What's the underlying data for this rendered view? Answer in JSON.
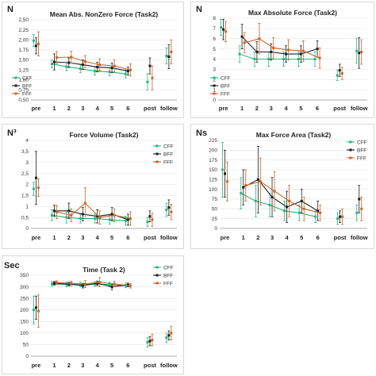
{
  "chart_data": [
    {
      "type": "line",
      "unit": "N",
      "title": "Mean Abs. NonZero Force (Task2)",
      "categories": [
        "pre",
        "1",
        "2",
        "3",
        "4",
        "5",
        "6",
        "post",
        "follow"
      ],
      "ylim": [
        0.5,
        2.5
      ],
      "yticks": [
        "0,50",
        "0,75",
        "1,00",
        "1,25",
        "1,50",
        "1,75",
        "2,00",
        "2,25",
        "2,50"
      ],
      "legend_position": "left",
      "series": [
        {
          "name": "CFF",
          "color": "#2db37c",
          "values": [
            1.98,
            1.4,
            1.33,
            1.28,
            1.22,
            1.2,
            1.15,
            0.95,
            1.6
          ],
          "err": [
            0.15,
            0.1,
            0.1,
            0.1,
            0.1,
            0.1,
            0.1,
            0.2,
            0.2
          ]
        },
        {
          "name": "BFF",
          "color": "#1e1e1e",
          "values": [
            1.85,
            1.45,
            1.43,
            1.38,
            1.32,
            1.3,
            1.22,
            1.35,
            1.58
          ],
          "err": [
            0.2,
            0.2,
            0.12,
            0.12,
            0.12,
            0.12,
            0.1,
            0.2,
            0.3
          ]
        },
        {
          "name": "FFF",
          "color": "#c8642a",
          "values": [
            1.9,
            1.56,
            1.57,
            1.46,
            1.38,
            1.35,
            1.25,
            1.05,
            1.7
          ],
          "err": [
            0.3,
            0.15,
            0.15,
            0.15,
            0.15,
            0.15,
            0.15,
            0.3,
            0.3
          ]
        }
      ]
    },
    {
      "type": "line",
      "unit": "N",
      "title": "Max Absolute Force (Task2)",
      "categories": [
        "pre",
        "1",
        "2",
        "3",
        "4",
        "5",
        "6",
        "post",
        "follow"
      ],
      "ylim": [
        0,
        8
      ],
      "yticks": [
        "0",
        "1",
        "2",
        "3",
        "4",
        "5",
        "6",
        "7",
        "8"
      ],
      "legend_position": "left",
      "series": [
        {
          "name": "CFF",
          "color": "#2db37c",
          "values": [
            7.1,
            4.5,
            4.0,
            4.0,
            4.0,
            4.0,
            4.0,
            2.4,
            4.8
          ],
          "err": [
            0.8,
            0.8,
            0.7,
            0.7,
            0.7,
            0.7,
            0.7,
            0.5,
            1.2
          ]
        },
        {
          "name": "BFF",
          "color": "#1e1e1e",
          "values": [
            6.9,
            6.2,
            4.7,
            4.7,
            4.5,
            4.5,
            5.0,
            2.9,
            4.6
          ],
          "err": [
            1.0,
            1.2,
            1.0,
            0.8,
            0.8,
            0.8,
            0.8,
            0.6,
            1.5
          ]
        },
        {
          "name": "FFF",
          "color": "#c8642a",
          "values": [
            6.7,
            5.6,
            6.0,
            5.1,
            4.9,
            4.8,
            4.1,
            2.6,
            4.7
          ],
          "err": [
            1.0,
            1.0,
            1.5,
            1.0,
            1.0,
            1.0,
            1.0,
            0.6,
            1.2
          ]
        }
      ]
    },
    {
      "type": "line",
      "unit": "N³",
      "title": "Force Volume (Task2)",
      "categories": [
        "pre",
        "1",
        "2",
        "3",
        "4",
        "5",
        "6",
        "post",
        "follow"
      ],
      "ylim": [
        0,
        4
      ],
      "yticks": [
        "0",
        "0,5",
        "1",
        "1,5",
        "2",
        "2,5",
        "3",
        "3,5",
        "4"
      ],
      "legend_position": "right",
      "series": [
        {
          "name": "CFF",
          "color": "#2db37c",
          "values": [
            1.8,
            0.6,
            0.5,
            0.45,
            0.45,
            0.4,
            0.35,
            0.3,
            0.85
          ],
          "err": [
            0.3,
            0.25,
            0.25,
            0.2,
            0.2,
            0.2,
            0.2,
            0.2,
            0.3
          ]
        },
        {
          "name": "BFF",
          "color": "#1e1e1e",
          "values": [
            2.3,
            0.8,
            0.8,
            0.65,
            0.55,
            0.65,
            0.4,
            0.55,
            0.95
          ],
          "err": [
            1.2,
            0.25,
            0.35,
            0.3,
            0.3,
            0.3,
            0.25,
            0.25,
            0.35
          ]
        },
        {
          "name": "FFF",
          "color": "#c8642a",
          "values": [
            1.85,
            0.75,
            0.6,
            1.15,
            0.5,
            0.6,
            0.45,
            0.4,
            0.75
          ],
          "err": [
            0.4,
            0.3,
            0.3,
            0.7,
            0.3,
            0.3,
            0.3,
            0.3,
            0.35
          ]
        }
      ]
    },
    {
      "type": "line",
      "unit": "Ns",
      "title": "Max Force Area (Task2)",
      "categories": [
        "pre",
        "1",
        "2",
        "3",
        "4",
        "5",
        "6",
        "post",
        "follow"
      ],
      "ylim": [
        0,
        225
      ],
      "yticks": [
        "0",
        "25",
        "50",
        "75",
        "100",
        "125",
        "150",
        "175",
        "200",
        "225"
      ],
      "legend_position": "right",
      "series": [
        {
          "name": "CFF",
          "color": "#2db37c",
          "values": [
            150,
            90,
            70,
            60,
            45,
            40,
            30,
            25,
            40
          ],
          "err": [
            70,
            40,
            40,
            30,
            25,
            20,
            15,
            15,
            20
          ]
        },
        {
          "name": "BFF",
          "color": "#1e1e1e",
          "values": [
            140,
            105,
            125,
            80,
            55,
            70,
            45,
            30,
            75
          ],
          "err": [
            60,
            45,
            85,
            50,
            40,
            30,
            25,
            15,
            35
          ]
        },
        {
          "name": "FFF",
          "color": "#c8642a",
          "values": [
            120,
            110,
            120,
            95,
            70,
            50,
            40,
            30,
            50
          ],
          "err": [
            50,
            40,
            60,
            50,
            40,
            30,
            20,
            20,
            30
          ]
        }
      ]
    },
    {
      "type": "line",
      "unit": "Sec",
      "title": "Time (Task 2)",
      "categories": [
        "pre",
        "1",
        "2",
        "3",
        "4",
        "5",
        "6",
        "post",
        "follow"
      ],
      "ylim": [
        0,
        350
      ],
      "yticks": [
        "0",
        "50",
        "100",
        "150",
        "200",
        "250",
        "300",
        "350"
      ],
      "legend_position": "right",
      "series": [
        {
          "name": "CFF",
          "color": "#2db37c",
          "values": [
            200,
            313,
            310,
            310,
            312,
            310,
            306,
            60,
            80
          ],
          "err": [
            60,
            10,
            10,
            10,
            10,
            10,
            10,
            20,
            20
          ]
        },
        {
          "name": "BFF",
          "color": "#1e1e1e",
          "values": [
            210,
            315,
            312,
            305,
            315,
            300,
            308,
            65,
            90
          ],
          "err": [
            50,
            8,
            8,
            10,
            10,
            12,
            8,
            20,
            20
          ]
        },
        {
          "name": "FFF",
          "color": "#c8642a",
          "values": [
            195,
            318,
            315,
            312,
            320,
            312,
            305,
            70,
            100
          ],
          "err": [
            70,
            8,
            10,
            15,
            20,
            12,
            10,
            25,
            30
          ]
        }
      ]
    }
  ]
}
